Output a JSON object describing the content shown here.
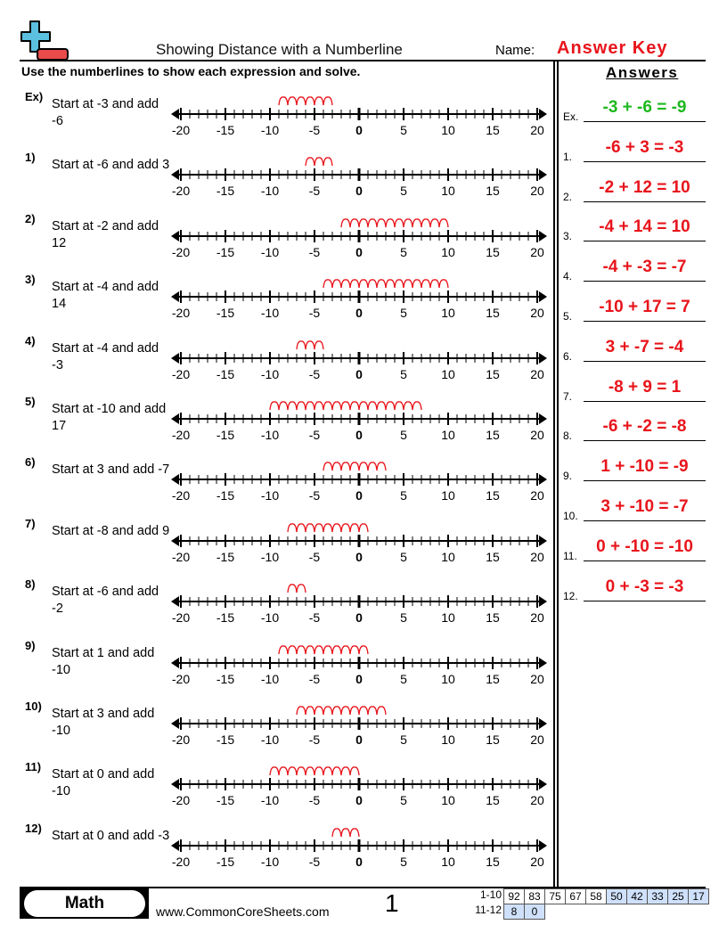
{
  "header": {
    "title": "Showing Distance with a Numberline",
    "name_label": "Name:",
    "name_value": "Answer Key",
    "instructions": "Use the numberlines to show each expression and solve.",
    "answers_heading": "Answers"
  },
  "numberline": {
    "min": -20,
    "max": 20,
    "labels": [
      "-20",
      "-15",
      "-10",
      "-5",
      "0",
      "5",
      "10",
      "15",
      "20"
    ]
  },
  "colors": {
    "arc": "#e8141b",
    "answer": "#e8141b",
    "example_answer": "#1db81d",
    "score_shade": "#cfe0fb",
    "logo_plus": "#5bbfe0",
    "logo_minus": "#e94b4b"
  },
  "problems": [
    {
      "num": "Ex)",
      "text": "Start at -3 and add -6",
      "start": -3,
      "add": -6
    },
    {
      "num": "1)",
      "text": "Start at -6 and add 3",
      "start": -6,
      "add": 3
    },
    {
      "num": "2)",
      "text": "Start at -2 and add 12",
      "start": -2,
      "add": 12
    },
    {
      "num": "3)",
      "text": "Start at -4 and add 14",
      "start": -4,
      "add": 14
    },
    {
      "num": "4)",
      "text": "Start at -4 and add -3",
      "start": -4,
      "add": -3
    },
    {
      "num": "5)",
      "text": "Start at -10 and add 17",
      "start": -10,
      "add": 17
    },
    {
      "num": "6)",
      "text": "Start at 3 and add -7",
      "start": 3,
      "add": -7
    },
    {
      "num": "7)",
      "text": "Start at -8 and add 9",
      "start": -8,
      "add": 9
    },
    {
      "num": "8)",
      "text": "Start at -6 and add -2",
      "start": -6,
      "add": -2
    },
    {
      "num": "9)",
      "text": "Start at 1 and add -10",
      "start": 1,
      "add": -10
    },
    {
      "num": "10)",
      "text": "Start at 3 and add -10",
      "start": 3,
      "add": -10
    },
    {
      "num": "11)",
      "text": "Start at 0 and add -10",
      "start": 0,
      "add": -10
    },
    {
      "num": "12)",
      "text": "Start at 0 and add -3",
      "start": 0,
      "add": -3
    }
  ],
  "answers": [
    {
      "num": "Ex.",
      "text": "-3 + -6 = -9"
    },
    {
      "num": "1.",
      "text": "-6 + 3 = -3"
    },
    {
      "num": "2.",
      "text": "-2 + 12 = 10"
    },
    {
      "num": "3.",
      "text": "-4 + 14 = 10"
    },
    {
      "num": "4.",
      "text": "-4 + -3 = -7"
    },
    {
      "num": "5.",
      "text": "-10 + 17 = 7"
    },
    {
      "num": "6.",
      "text": "3 + -7 = -4"
    },
    {
      "num": "7.",
      "text": "-8 + 9 = 1"
    },
    {
      "num": "8.",
      "text": "-6 + -2 = -8"
    },
    {
      "num": "9.",
      "text": "1 + -10 = -9"
    },
    {
      "num": "10.",
      "text": "3 + -10 = -7"
    },
    {
      "num": "11.",
      "text": "0 + -10 = -10"
    },
    {
      "num": "12.",
      "text": "0 + -3 = -3"
    }
  ],
  "footer": {
    "subject": "Math",
    "site": "www.CommonCoreSheets.com",
    "page": "1",
    "scores": [
      {
        "label": "1-10",
        "values": [
          "92",
          "83",
          "75",
          "67",
          "58",
          "50",
          "42",
          "33",
          "25",
          "17"
        ],
        "shaded_from": 5
      },
      {
        "label": "11-12",
        "values": [
          "8",
          "0"
        ],
        "shaded_from": 0
      }
    ]
  }
}
